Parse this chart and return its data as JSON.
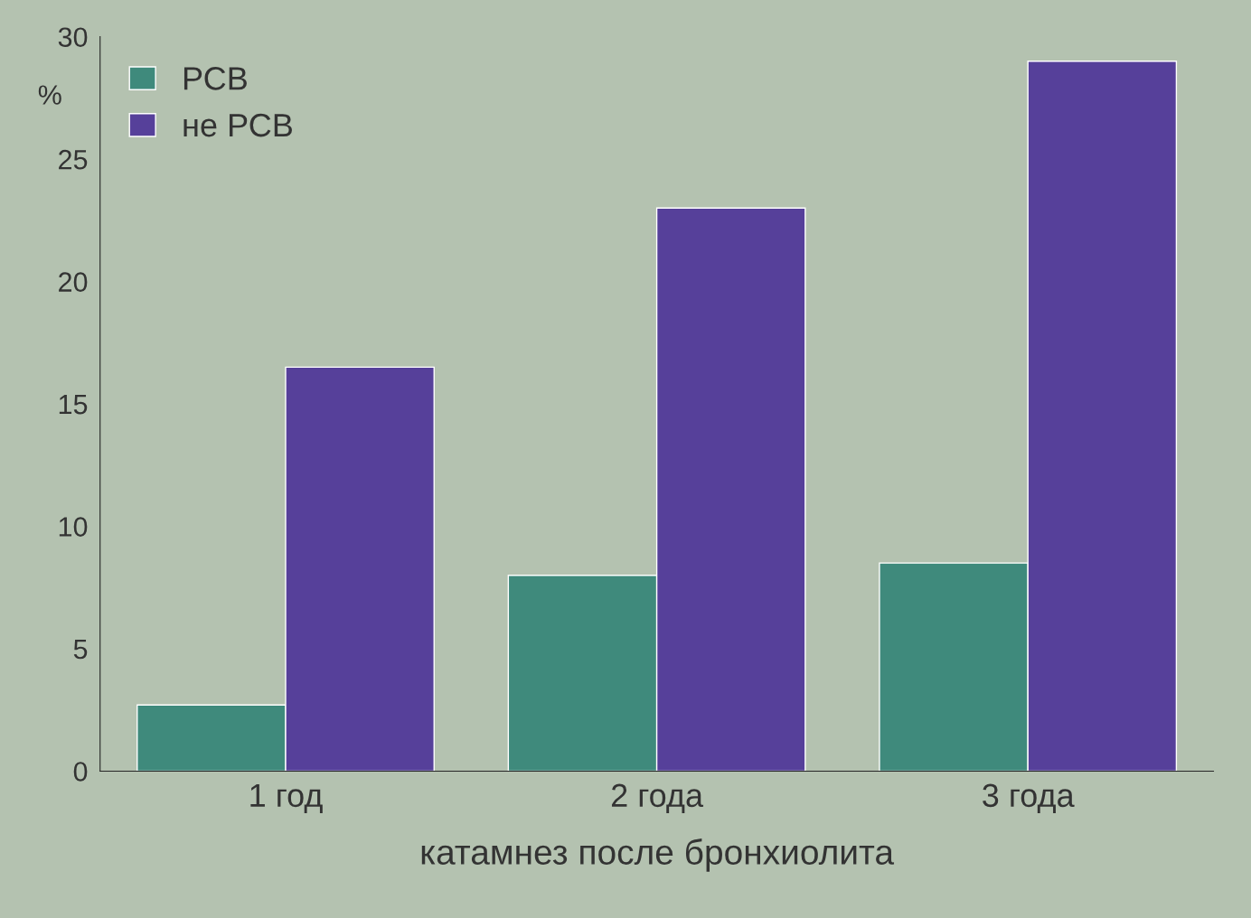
{
  "chart_data": {
    "type": "bar",
    "xlabel": "катамнез после бронхиолита",
    "ylabel": "%",
    "categories": [
      "1 год",
      "2 года",
      "3 года"
    ],
    "series": [
      {
        "name": "РСВ",
        "color": "#3f8a7c",
        "values": [
          2.7,
          8,
          8.5
        ]
      },
      {
        "name": "не РСВ",
        "color": "#56409a",
        "values": [
          16.5,
          23,
          29
        ]
      }
    ],
    "ylim": [
      0,
      30
    ],
    "yticks": [
      0,
      5,
      10,
      15,
      20,
      25,
      30
    ],
    "grid": false,
    "legend": "top left"
  }
}
